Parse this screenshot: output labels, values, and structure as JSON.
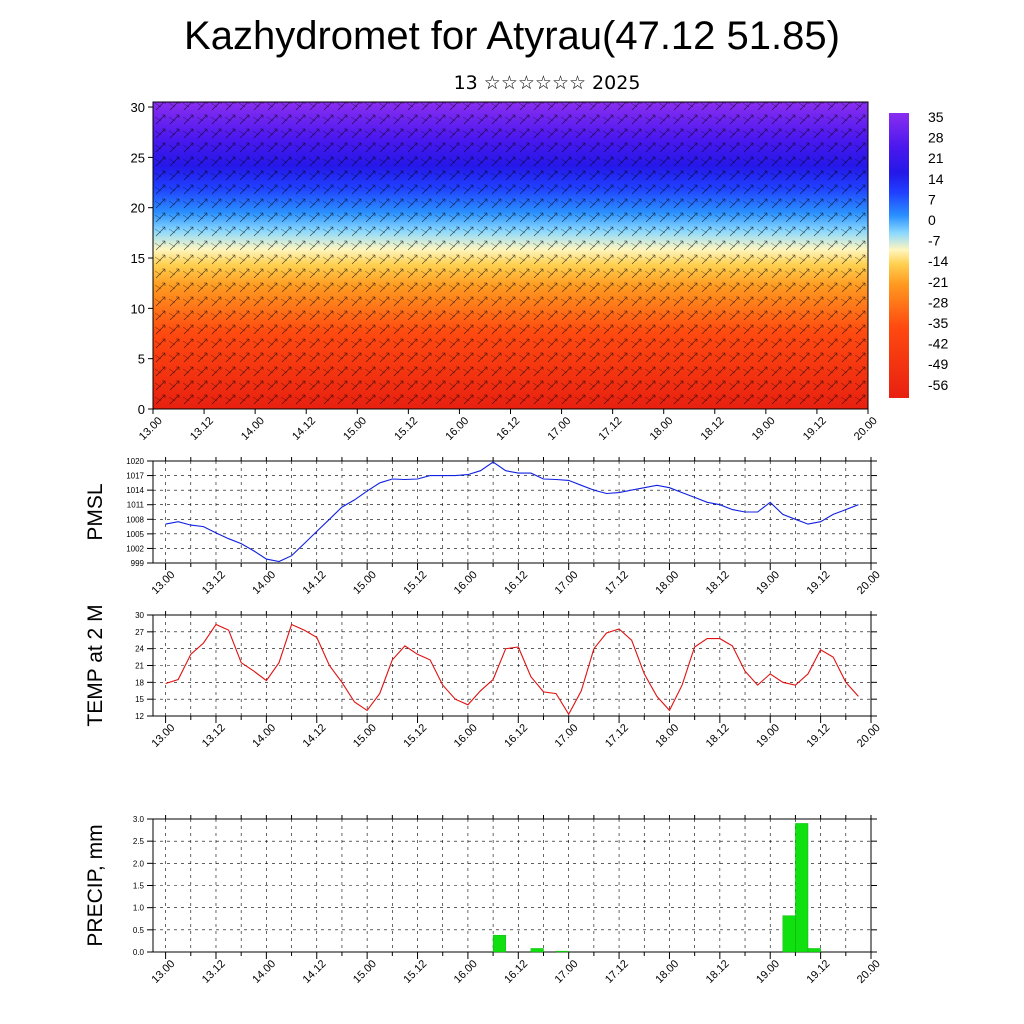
{
  "title": "Kazhydromet for Atyrau(47.12 51.85)",
  "subtitle": "13 ☆☆☆☆☆☆ 2025",
  "x_tick_labels": [
    "13.00",
    "13.12",
    "14.00",
    "14.12",
    "15.00",
    "15.12",
    "16.00",
    "16.12",
    "17.00",
    "17.12",
    "18.00",
    "18.12",
    "19.00",
    "19.12",
    "20.00"
  ],
  "colorbar": {
    "labels": [
      "35",
      "28",
      "21",
      "14",
      "7",
      "0",
      "-7",
      "-14",
      "-21",
      "-28",
      "-35",
      "-42",
      "-49",
      "-56"
    ],
    "colors": [
      "#e23a3a",
      "#ff2a1a",
      "#ff6a10",
      "#ff9a20",
      "#ffc030",
      "#ffe070",
      "#fff8c0",
      "#c8eaff",
      "#40c8ff",
      "#1e90ff",
      "#2040ff",
      "#3020e0",
      "#5a10e8",
      "#8a20f0"
    ]
  },
  "chart_data": [
    {
      "type": "heatmap",
      "name": "cross-section",
      "y_ticks": [
        0,
        5,
        10,
        15,
        20,
        25,
        30
      ],
      "ylim": [
        0,
        30.5
      ],
      "xlim": [
        0,
        168
      ],
      "zlim": [
        -56,
        35
      ],
      "note_overlay": "wind vectors"
    },
    {
      "type": "line",
      "ylabel": "PMSL",
      "ylim": [
        999,
        1020
      ],
      "y_ticks": [
        999,
        1002,
        1005,
        1008,
        1011,
        1014,
        1017,
        1020
      ],
      "xlim": [
        -3,
        168
      ],
      "x": [
        0,
        3,
        6,
        9,
        12,
        15,
        18,
        21,
        24,
        27,
        30,
        33,
        36,
        39,
        42,
        45,
        48,
        51,
        54,
        57,
        60,
        63,
        66,
        69,
        72,
        75,
        78,
        81,
        84,
        87,
        90,
        93,
        96,
        99,
        102,
        105,
        108,
        111,
        114,
        117,
        120,
        123,
        126,
        129,
        132,
        135,
        138,
        141,
        144,
        147,
        150,
        153,
        156,
        159,
        162,
        165
      ],
      "series": [
        {
          "color": "#1020e0",
          "values": [
            1007,
            1007.5,
            1006.8,
            1006.5,
            1005.2,
            1004.0,
            1003.0,
            1001.5,
            999.8,
            999.3,
            1000.5,
            1003,
            1005.5,
            1008,
            1010.5,
            1012,
            1013.8,
            1015.5,
            1016.3,
            1016.2,
            1016.3,
            1017,
            1017,
            1017,
            1017.2,
            1018,
            1019.8,
            1018,
            1017.5,
            1017.5,
            1016.3,
            1016.2,
            1016,
            1015,
            1014,
            1013.3,
            1013.5,
            1014,
            1014.5,
            1015,
            1014.5,
            1013.5,
            1012.5,
            1011.5,
            1011,
            1010,
            1009.5,
            1009.5,
            1011.5,
            1009,
            1008,
            1007,
            1007.5,
            1009,
            1010,
            1011
          ]
        }
      ]
    },
    {
      "type": "line",
      "ylabel": "TEMP at 2 M",
      "ylim": [
        12,
        30
      ],
      "y_ticks": [
        12,
        15,
        18,
        21,
        24,
        27,
        30
      ],
      "xlim": [
        -3,
        168
      ],
      "x": [
        0,
        3,
        6,
        9,
        12,
        15,
        18,
        21,
        24,
        27,
        30,
        33,
        36,
        39,
        42,
        45,
        48,
        51,
        54,
        57,
        60,
        63,
        66,
        69,
        72,
        75,
        78,
        81,
        84,
        87,
        90,
        93,
        96,
        99,
        102,
        105,
        108,
        111,
        114,
        117,
        120,
        123,
        126,
        129,
        132,
        135,
        138,
        141,
        144,
        147,
        150,
        153,
        156,
        159,
        162,
        165
      ],
      "series": [
        {
          "color": "#e01010",
          "values": [
            17.8,
            18.5,
            23,
            25,
            28.3,
            27.3,
            21.5,
            20,
            18.3,
            21.5,
            28.3,
            27.3,
            26,
            21,
            18,
            14.5,
            13,
            16,
            22,
            24.5,
            23,
            22,
            17.5,
            15,
            14,
            16.5,
            18.5,
            24,
            24.3,
            19,
            16.3,
            16,
            12.3,
            16.5,
            24,
            26.8,
            27.5,
            25.5,
            19.5,
            15.5,
            13,
            17.5,
            24.3,
            25.8,
            25.8,
            24.5,
            20,
            17.5,
            19.5,
            18,
            17.5,
            19.5,
            23.8,
            22.5,
            18,
            15.5
          ]
        }
      ]
    },
    {
      "type": "bar",
      "ylabel": "PRECIP, mm",
      "ylim": [
        0,
        3.0
      ],
      "y_ticks": [
        0.0,
        0.5,
        1.0,
        1.5,
        2.0,
        2.5,
        3.0
      ],
      "xlim": [
        -3,
        168
      ],
      "x": [
        78,
        87,
        93,
        147,
        150,
        153
      ],
      "series": [
        {
          "color": "#10e010",
          "values": [
            0.38,
            0.08,
            0.02,
            0.82,
            2.9,
            0.08
          ]
        }
      ]
    }
  ]
}
